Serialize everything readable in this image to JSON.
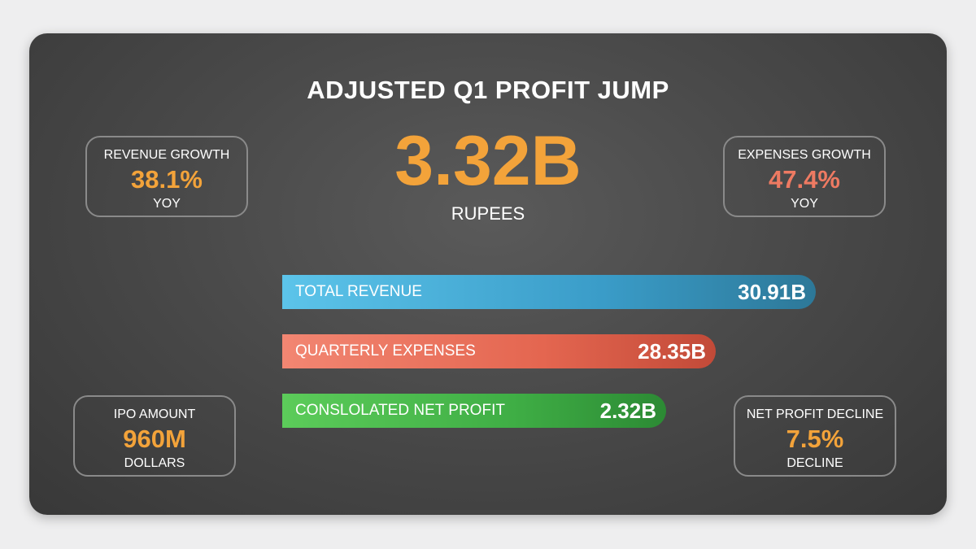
{
  "headline": {
    "title": "ADJUSTED Q1 PROFIT JUMP",
    "value": "3.32B",
    "unit": "RUPEES"
  },
  "cards": {
    "revenue_growth": {
      "label": "REVENUE GROWTH",
      "value": "38.1%",
      "sub": "YOY"
    },
    "expenses_growth": {
      "label": "EXPENSES GROWTH",
      "value": "47.4%",
      "sub": "YOY"
    },
    "ipo_amount": {
      "label": "IPO AMOUNT",
      "value": "960M",
      "sub": "DOLLARS"
    },
    "net_profit_decline": {
      "label": "NET PROFIT DECLINE",
      "value": "7.5%",
      "sub": "DECLINE"
    }
  },
  "bars": [
    {
      "label": "TOTAL REVENUE",
      "value": "30.91B",
      "amount": 30.91
    },
    {
      "label": "QUARTERLY EXPENSES",
      "value": "28.35B",
      "amount": 28.35
    },
    {
      "label": "CONSLOLATED NET PROFIT",
      "value": "2.32B",
      "amount": 2.32
    }
  ],
  "colors": {
    "accent": "#f3a33a",
    "expense_accent": "#ee7a62",
    "revenue_bar": "#3a9cc8",
    "expense_bar": "#e46650",
    "profit_bar": "#3fae45",
    "panel": "#4a4a4a"
  }
}
